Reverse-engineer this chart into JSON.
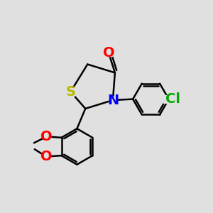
{
  "background_color": "#e0e0e0",
  "atom_colors": {
    "S": "#b8b800",
    "N": "#0000ff",
    "O": "#ff0000",
    "Cl": "#00aa00",
    "C": "#000000"
  },
  "linewidth": 1.8,
  "font_size": 14
}
